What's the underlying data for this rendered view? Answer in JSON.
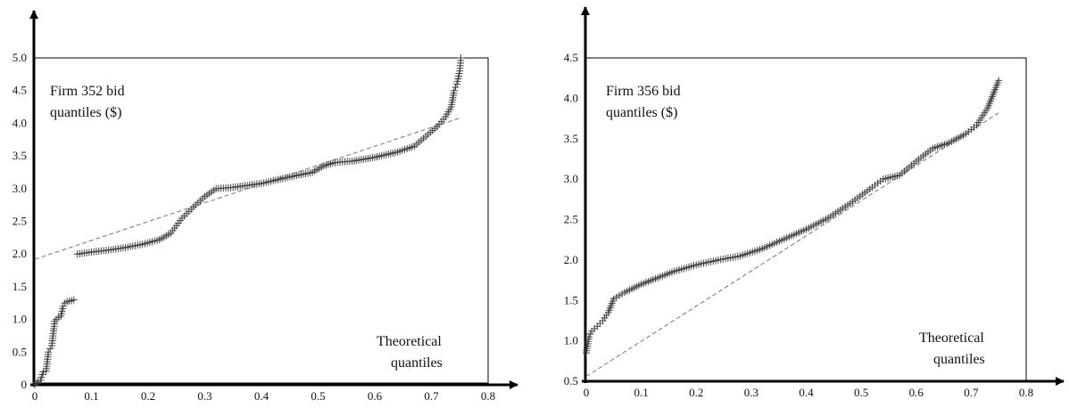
{
  "chart_data": [
    {
      "type": "scatter",
      "title": "",
      "label_line1": "Firm 352 bid",
      "label_line2": "quantiles ($)",
      "xlabel_line1": "Theoretical",
      "xlabel_line2": "quantiles",
      "xlim": [
        0,
        0.8
      ],
      "ylim": [
        0,
        5.0
      ],
      "x_ticks": [
        "0",
        "0.1",
        "0.2",
        "0.3",
        "0.4",
        "0.5",
        "0.6",
        "0.7",
        "0.8"
      ],
      "y_ticks": [
        "0",
        "0.5",
        "1.0",
        "1.5",
        "2.0",
        "2.5",
        "3.0",
        "3.5",
        "4.0",
        "4.5",
        "5.0"
      ],
      "grid": false,
      "marker": "+",
      "points": [
        [
          0.0,
          0.0
        ],
        [
          0.003,
          0.03
        ],
        [
          0.006,
          0.05
        ],
        [
          0.01,
          0.07
        ],
        [
          0.015,
          0.2
        ],
        [
          0.02,
          0.21
        ],
        [
          0.024,
          0.5
        ],
        [
          0.027,
          0.55
        ],
        [
          0.03,
          0.6
        ],
        [
          0.035,
          0.97
        ],
        [
          0.038,
          1.0
        ],
        [
          0.042,
          1.03
        ],
        [
          0.046,
          1.05
        ],
        [
          0.05,
          1.2
        ],
        [
          0.053,
          1.25
        ],
        [
          0.057,
          1.27
        ],
        [
          0.061,
          1.28
        ],
        [
          0.065,
          1.29
        ],
        [
          0.069,
          1.3
        ],
        [
          0.075,
          2.0
        ],
        [
          0.1,
          2.03
        ],
        [
          0.13,
          2.06
        ],
        [
          0.16,
          2.1
        ],
        [
          0.19,
          2.15
        ],
        [
          0.22,
          2.22
        ],
        [
          0.24,
          2.32
        ],
        [
          0.26,
          2.55
        ],
        [
          0.28,
          2.72
        ],
        [
          0.3,
          2.88
        ],
        [
          0.32,
          3.0
        ],
        [
          0.35,
          3.02
        ],
        [
          0.4,
          3.08
        ],
        [
          0.45,
          3.18
        ],
        [
          0.49,
          3.25
        ],
        [
          0.51,
          3.35
        ],
        [
          0.53,
          3.4
        ],
        [
          0.56,
          3.42
        ],
        [
          0.6,
          3.48
        ],
        [
          0.64,
          3.56
        ],
        [
          0.67,
          3.65
        ],
        [
          0.69,
          3.8
        ],
        [
          0.71,
          3.95
        ],
        [
          0.725,
          4.1
        ],
        [
          0.735,
          4.25
        ],
        [
          0.74,
          4.5
        ],
        [
          0.745,
          4.6
        ],
        [
          0.748,
          4.72
        ],
        [
          0.75,
          4.8
        ],
        [
          0.752,
          5.0
        ]
      ],
      "reference_line": [
        [
          0,
          1.92
        ],
        [
          0.75,
          4.08
        ]
      ]
    },
    {
      "type": "scatter",
      "title": "",
      "label_line1": "Firm 356 bid",
      "label_line2": "quantiles ($)",
      "xlabel_line1": "Theoretical",
      "xlabel_line2": "quantiles",
      "xlim": [
        0,
        0.8
      ],
      "ylim": [
        0.5,
        4.5
      ],
      "x_ticks": [
        "0",
        "0.1",
        "0.2",
        "0.3",
        "0.4",
        "0.5",
        "0.6",
        "0.7",
        "0.8"
      ],
      "y_ticks": [
        "0.5",
        "1.0",
        "1.5",
        "2.0",
        "2.5",
        "3.0",
        "3.5",
        "4.0",
        "4.5"
      ],
      "grid": false,
      "marker": "+",
      "points": [
        [
          0.0,
          0.85
        ],
        [
          0.005,
          1.05
        ],
        [
          0.01,
          1.12
        ],
        [
          0.02,
          1.18
        ],
        [
          0.03,
          1.25
        ],
        [
          0.04,
          1.35
        ],
        [
          0.05,
          1.52
        ],
        [
          0.07,
          1.6
        ],
        [
          0.1,
          1.7
        ],
        [
          0.13,
          1.78
        ],
        [
          0.16,
          1.86
        ],
        [
          0.2,
          1.94
        ],
        [
          0.24,
          2.0
        ],
        [
          0.28,
          2.05
        ],
        [
          0.32,
          2.14
        ],
        [
          0.36,
          2.26
        ],
        [
          0.4,
          2.38
        ],
        [
          0.44,
          2.52
        ],
        [
          0.48,
          2.7
        ],
        [
          0.52,
          2.9
        ],
        [
          0.54,
          3.0
        ],
        [
          0.57,
          3.05
        ],
        [
          0.6,
          3.22
        ],
        [
          0.63,
          3.38
        ],
        [
          0.66,
          3.45
        ],
        [
          0.69,
          3.56
        ],
        [
          0.71,
          3.67
        ],
        [
          0.73,
          3.88
        ],
        [
          0.74,
          4.05
        ],
        [
          0.75,
          4.22
        ]
      ],
      "reference_line": [
        [
          0,
          0.56
        ],
        [
          0.75,
          3.82
        ]
      ]
    }
  ]
}
